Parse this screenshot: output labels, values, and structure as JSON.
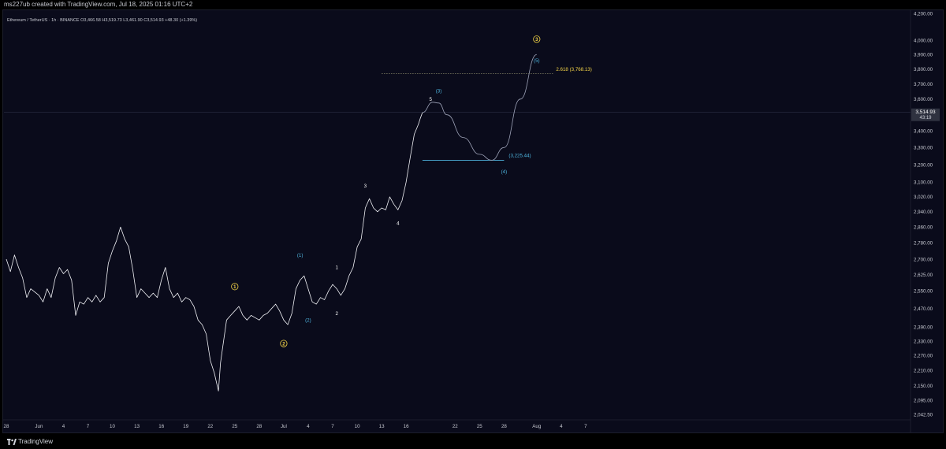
{
  "header": {
    "attribution": "ms227ub created with TradingView.com, Jul 18, 2025 01:16 UTC+2"
  },
  "footer": {
    "brand": "TradingView"
  },
  "colors": {
    "background": "#0a0b1b",
    "price": "#f0f1f5",
    "axis_text": "#c7c9d1",
    "fib_yellow": "#f5d547",
    "wave_cyan": "#4fb6e0",
    "projection": "#9ea3b8"
  },
  "chart_data": {
    "type": "line",
    "legend": "Ethereum / TetherUS · 1h · BINANCE  O3,466.58  H3,519.73  L3,461.90  C3,514.93  +48.30 (+1.39%)",
    "current_price": 3514.93,
    "current_price_label": "3,514.93",
    "countdown": "43:19",
    "y_axis": {
      "scale": "log",
      "ticks": [
        4200,
        4000,
        3900,
        3800,
        3700,
        3600,
        3514.93,
        3400,
        3300,
        3200,
        3100,
        3020,
        2940,
        2860,
        2780,
        2700,
        2625,
        2550,
        2470,
        2390,
        2330,
        2270,
        2210,
        2150,
        2095,
        2042.5
      ],
      "tick_labels": [
        "4,200.00",
        "4,000.00",
        "3,900.00",
        "3,800.00",
        "3,700.00",
        "3,600.00",
        "",
        "3,400.00",
        "3,300.00",
        "3,200.00",
        "3,100.00",
        "3,020.00",
        "2,940.00",
        "2,860.00",
        "2,780.00",
        "2,700.00",
        "2,625.00",
        "2,550.00",
        "2,470.00",
        "2,390.00",
        "2,330.00",
        "2,270.00",
        "2,210.00",
        "2,150.00",
        "2,095.00",
        "2,042.50"
      ]
    },
    "x_axis": {
      "ticks": [
        "2025-05-28",
        "2025-06-01",
        "2025-06-04",
        "2025-06-07",
        "2025-06-10",
        "2025-06-13",
        "2025-06-16",
        "2025-06-19",
        "2025-06-22",
        "2025-06-25",
        "2025-06-28",
        "2025-07-01",
        "2025-07-04",
        "2025-07-07",
        "2025-07-10",
        "2025-07-13",
        "2025-07-16",
        "2025-07-19",
        "2025-07-22",
        "2025-07-25",
        "2025-07-28",
        "2025-08-01",
        "2025-08-04",
        "2025-08-07"
      ],
      "tick_labels": [
        "28",
        "Jun",
        "4",
        "7",
        "10",
        "13",
        "16",
        "19",
        "22",
        "25",
        "28",
        "Jul",
        "4",
        "7",
        "10",
        "13",
        "16",
        "",
        "22",
        "25",
        "28",
        "Aug",
        "4",
        "7"
      ]
    },
    "series": [
      {
        "points": [
          [
            "2025-05-28",
            2700
          ],
          [
            "2025-05-28T12",
            2640
          ],
          [
            "2025-05-29",
            2720
          ],
          [
            "2025-05-29T12",
            2660
          ],
          [
            "2025-05-30",
            2610
          ],
          [
            "2025-05-30T12",
            2520
          ],
          [
            "2025-05-31",
            2560
          ],
          [
            "2025-06-01",
            2530
          ],
          [
            "2025-06-01T12",
            2500
          ],
          [
            "2025-06-02",
            2560
          ],
          [
            "2025-06-02T12",
            2520
          ],
          [
            "2025-06-03",
            2610
          ],
          [
            "2025-06-03T12",
            2660
          ],
          [
            "2025-06-04",
            2630
          ],
          [
            "2025-06-04T12",
            2650
          ],
          [
            "2025-06-05",
            2600
          ],
          [
            "2025-06-05T12",
            2440
          ],
          [
            "2025-06-06",
            2500
          ],
          [
            "2025-06-06T12",
            2490
          ],
          [
            "2025-06-07",
            2520
          ],
          [
            "2025-06-07T12",
            2500
          ],
          [
            "2025-06-08",
            2530
          ],
          [
            "2025-06-08T12",
            2500
          ],
          [
            "2025-06-09",
            2520
          ],
          [
            "2025-06-09T12",
            2680
          ],
          [
            "2025-06-10",
            2740
          ],
          [
            "2025-06-10T12",
            2790
          ],
          [
            "2025-06-11",
            2860
          ],
          [
            "2025-06-11T12",
            2800
          ],
          [
            "2025-06-12",
            2760
          ],
          [
            "2025-06-12T12",
            2650
          ],
          [
            "2025-06-13",
            2520
          ],
          [
            "2025-06-13T12",
            2560
          ],
          [
            "2025-06-14",
            2540
          ],
          [
            "2025-06-14T12",
            2520
          ],
          [
            "2025-06-15",
            2540
          ],
          [
            "2025-06-15T12",
            2520
          ],
          [
            "2025-06-16",
            2600
          ],
          [
            "2025-06-16T12",
            2660
          ],
          [
            "2025-06-17",
            2560
          ],
          [
            "2025-06-17T12",
            2520
          ],
          [
            "2025-06-18",
            2540
          ],
          [
            "2025-06-18T12",
            2500
          ],
          [
            "2025-06-19",
            2520
          ],
          [
            "2025-06-19T12",
            2510
          ],
          [
            "2025-06-20",
            2480
          ],
          [
            "2025-06-20T12",
            2420
          ],
          [
            "2025-06-21",
            2400
          ],
          [
            "2025-06-21T12",
            2360
          ],
          [
            "2025-06-22",
            2250
          ],
          [
            "2025-06-22T12",
            2200
          ],
          [
            "2025-06-23",
            2130
          ],
          [
            "2025-06-23T06",
            2240
          ],
          [
            "2025-06-23T12",
            2300
          ],
          [
            "2025-06-24",
            2420
          ],
          [
            "2025-06-24T12",
            2440
          ],
          [
            "2025-06-25",
            2460
          ],
          [
            "2025-06-25T12",
            2480
          ],
          [
            "2025-06-26",
            2440
          ],
          [
            "2025-06-26T12",
            2420
          ],
          [
            "2025-06-27",
            2440
          ],
          [
            "2025-06-27T12",
            2430
          ],
          [
            "2025-06-28",
            2420
          ],
          [
            "2025-06-28T12",
            2440
          ],
          [
            "2025-06-29",
            2450
          ],
          [
            "2025-06-29T12",
            2470
          ],
          [
            "2025-06-30",
            2490
          ],
          [
            "2025-06-30T12",
            2460
          ],
          [
            "2025-07-01",
            2420
          ],
          [
            "2025-07-01T12",
            2400
          ],
          [
            "2025-07-02",
            2450
          ],
          [
            "2025-07-02T12",
            2560
          ],
          [
            "2025-07-03",
            2600
          ],
          [
            "2025-07-03T12",
            2620
          ],
          [
            "2025-07-04",
            2560
          ],
          [
            "2025-07-04T12",
            2500
          ],
          [
            "2025-07-05",
            2490
          ],
          [
            "2025-07-05T12",
            2520
          ],
          [
            "2025-07-06",
            2510
          ],
          [
            "2025-07-06T12",
            2550
          ],
          [
            "2025-07-07",
            2580
          ],
          [
            "2025-07-07T12",
            2560
          ],
          [
            "2025-07-08",
            2530
          ],
          [
            "2025-07-08T12",
            2560
          ],
          [
            "2025-07-09",
            2620
          ],
          [
            "2025-07-09T12",
            2660
          ],
          [
            "2025-07-10",
            2760
          ],
          [
            "2025-07-10T12",
            2800
          ],
          [
            "2025-07-11",
            2960
          ],
          [
            "2025-07-11T12",
            3010
          ],
          [
            "2025-07-12",
            2960
          ],
          [
            "2025-07-12T12",
            2940
          ],
          [
            "2025-07-13",
            2960
          ],
          [
            "2025-07-13T12",
            2950
          ],
          [
            "2025-07-14",
            3020
          ],
          [
            "2025-07-14T12",
            2980
          ],
          [
            "2025-07-15",
            2950
          ],
          [
            "2025-07-15T12",
            3000
          ],
          [
            "2025-07-16",
            3100
          ],
          [
            "2025-07-16T12",
            3240
          ],
          [
            "2025-07-17",
            3380
          ],
          [
            "2025-07-17T12",
            3440
          ],
          [
            "2025-07-17T18",
            3480
          ],
          [
            "2025-07-18",
            3514.93
          ]
        ]
      }
    ],
    "projection": {
      "points": [
        [
          "2025-07-18",
          3514.93
        ],
        [
          "2025-07-19T06",
          3580
        ],
        [
          "2025-07-20",
          3575
        ],
        [
          "2025-07-21",
          3500
        ],
        [
          "2025-07-23",
          3360
        ],
        [
          "2025-07-25",
          3260
        ],
        [
          "2025-07-26T12",
          3225.44
        ],
        [
          "2025-07-28",
          3300
        ],
        [
          "2025-07-30",
          3600
        ],
        [
          "2025-08-01",
          3900
        ]
      ]
    },
    "levels": [
      {
        "label": "2.618 (3,768.13)",
        "value": 3768.13,
        "from": "2025-07-13",
        "to": "2025-08-03"
      },
      {
        "label": "(3,225.44)",
        "value": 3225.44,
        "from": "2025-07-18",
        "to": "2025-07-28"
      }
    ],
    "annotations": [
      {
        "text": "3",
        "circled": true,
        "color": "#f5d547",
        "x": "2025-08-01",
        "y": 4010,
        "kind": "major"
      },
      {
        "text": "(5)",
        "color": "#4fb6e0",
        "x": "2025-08-01",
        "y": 3860
      },
      {
        "text": "(3)",
        "color": "#4fb6e0",
        "x": "2025-07-20",
        "y": 3655
      },
      {
        "text": "5",
        "color": "#ffffff",
        "x": "2025-07-19",
        "y": 3600
      },
      {
        "text": "(4)",
        "color": "#4fb6e0",
        "x": "2025-07-28",
        "y": 3160
      },
      {
        "text": "3",
        "color": "#ffffff",
        "x": "2025-07-11",
        "y": 3080
      },
      {
        "text": "4",
        "color": "#ffffff",
        "x": "2025-07-15",
        "y": 2880
      },
      {
        "text": "(1)",
        "color": "#4fb6e0",
        "x": "2025-07-03",
        "y": 2720
      },
      {
        "text": "1",
        "color": "#ffffff",
        "x": "2025-07-07T12",
        "y": 2660
      },
      {
        "text": "1",
        "circled": true,
        "color": "#f5d547",
        "x": "2025-06-25",
        "y": 2570,
        "kind": "major"
      },
      {
        "text": "2",
        "color": "#ffffff",
        "x": "2025-07-07T12",
        "y": 2450
      },
      {
        "text": "(2)",
        "color": "#4fb6e0",
        "x": "2025-07-04",
        "y": 2420
      },
      {
        "text": "2",
        "circled": true,
        "color": "#f5d547",
        "x": "2025-07-01",
        "y": 2320,
        "kind": "major"
      }
    ]
  }
}
